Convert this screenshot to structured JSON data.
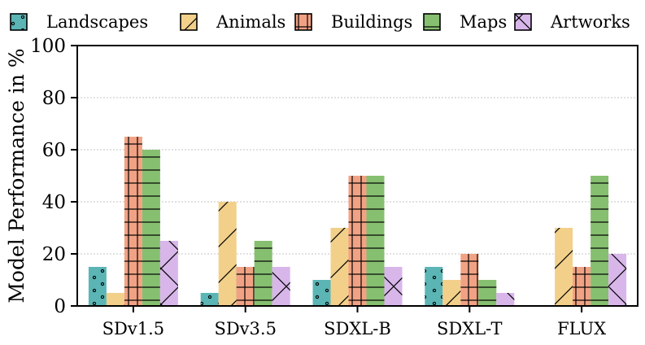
{
  "chart_data": {
    "type": "bar",
    "title": "",
    "xlabel": "",
    "ylabel": "Model Performance in %",
    "ylim": [
      0,
      100
    ],
    "yticks": [
      "0",
      "20",
      "40",
      "60",
      "80",
      "100"
    ],
    "grid": "horizontal dotted",
    "legend_position": "top",
    "categories": [
      "SDv1.5",
      "SDv3.5",
      "SDXL-B",
      "SDXL-T",
      "FLUX"
    ],
    "series": [
      {
        "name": "Landscapes",
        "color": "#5bb5b5",
        "hatch": "dots",
        "values": [
          15,
          5,
          10,
          15,
          0
        ]
      },
      {
        "name": "Animals",
        "color": "#f2d08a",
        "hatch": "diagonal",
        "values": [
          5,
          40,
          30,
          10,
          30
        ]
      },
      {
        "name": "Buildings",
        "color": "#f2a284",
        "hatch": "grid",
        "values": [
          65,
          15,
          50,
          20,
          15
        ]
      },
      {
        "name": "Maps",
        "color": "#86bf70",
        "hatch": "horizontal",
        "values": [
          60,
          25,
          50,
          10,
          50
        ]
      },
      {
        "name": "Artworks",
        "color": "#d8b6ea",
        "hatch": "cross",
        "values": [
          25,
          15,
          15,
          5,
          20
        ]
      }
    ]
  }
}
